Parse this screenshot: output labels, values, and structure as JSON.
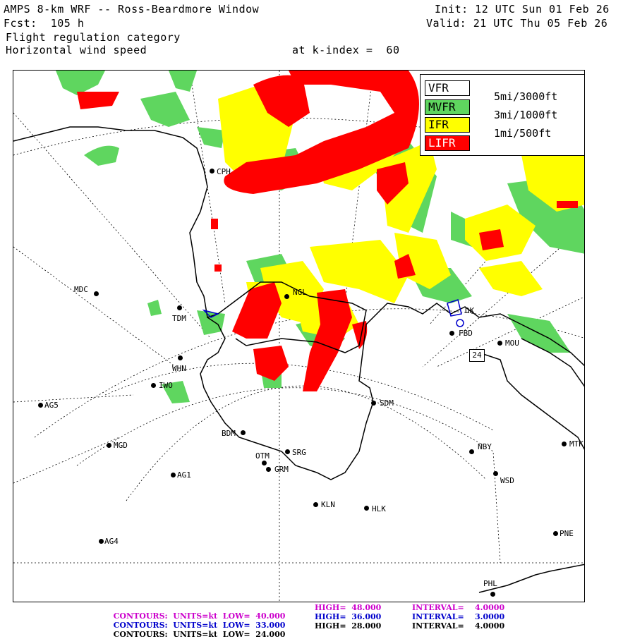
{
  "header": {
    "title": "AMPS 8-km WRF -- Ross-Beardmore Window",
    "forecast": "Fcst:  105 h",
    "field1": "Flight regulation category",
    "field2": "Horizontal wind speed",
    "level": "at k-index =  60",
    "init": "Init: 12 UTC Sun 01 Feb 26",
    "valid": "Valid: 21 UTC Thu 05 Feb 26"
  },
  "legend": {
    "items": [
      {
        "label": "VFR",
        "color": "#ffffff",
        "desc": "5mi/3000ft"
      },
      {
        "label": "MVFR",
        "color": "#5fd65f",
        "desc": "3mi/1000ft"
      },
      {
        "label": "IFR",
        "color": "#ffff00",
        "desc": "1mi/500ft"
      },
      {
        "label": "LIFR",
        "color": "#ff0000",
        "desc": ""
      }
    ]
  },
  "colors": {
    "vfr": "#ffffff",
    "mvfr": "#5fd65f",
    "ifr": "#ffff00",
    "lifr": "#ff0000",
    "contour_magenta": "#cc00cc",
    "contour_blue": "#0000cc",
    "contour_black": "#000000"
  },
  "stations": {
    "cph": "CPH",
    "mdc": "MDC",
    "tdm": "TDM",
    "ngl": "NGL",
    "whn": "WHN",
    "iwo": "IWO",
    "ag5": "AG5",
    "bdm": "BDM",
    "mgd": "MGD",
    "otm": "OTM",
    "srg": "SRG",
    "grm": "GRM",
    "ag1": "AG1",
    "kln": "KLN",
    "hlk": "HLK",
    "sdm": "SDM",
    "nby": "NBY",
    "mtk": "MTK",
    "wsd": "WSD",
    "pne": "PNE",
    "ag4": "AG4",
    "phl": "PHL",
    "mou": "MOU",
    "fbd": "FBD",
    "dk": "DK"
  },
  "box_label": "24",
  "contours": [
    {
      "units": "CONTOURS:  UNITS=kt",
      "low": "LOW=  40.000",
      "high": "HIGH=  48.000",
      "interval": "INTERVAL=    4.0000",
      "color": "#cc00cc"
    },
    {
      "units": "CONTOURS:  UNITS=kt",
      "low": "LOW=  33.000",
      "high": "HIGH=  36.000",
      "interval": "INTERVAL=    3.0000",
      "color": "#0000cc"
    },
    {
      "units": "CONTOURS:  UNITS=kt",
      "low": "LOW=  24.000",
      "high": "HIGH=  28.000",
      "interval": "INTERVAL=    4.0000",
      "color": "#000000"
    }
  ]
}
